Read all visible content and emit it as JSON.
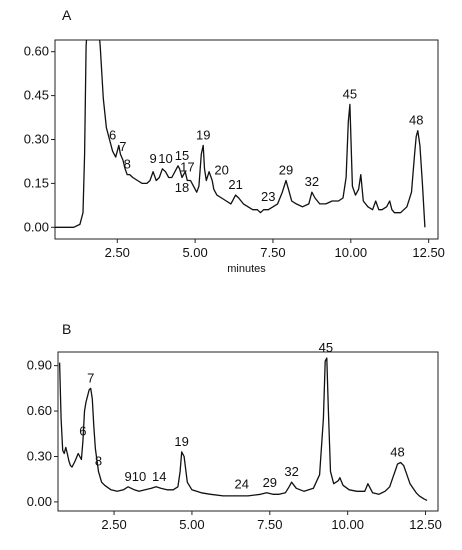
{
  "chart_data": [
    {
      "type": "line",
      "panel_label": "A",
      "xlabel": "minutes",
      "ylabel": "",
      "xlim": [
        0.5,
        12.8
      ],
      "ylim": [
        -0.04,
        0.64
      ],
      "xticks": [
        "2.50",
        "5.00",
        "7.50",
        "10.00",
        "12.50"
      ],
      "yticks": [
        "0.00",
        "0.15",
        "0.30",
        "0.45",
        "0.60"
      ],
      "grid": false,
      "series": [
        {
          "x": [
            0.5,
            1.1,
            1.3,
            1.4,
            1.45,
            1.5,
            1.55,
            1.6,
            1.7,
            1.8,
            1.88,
            1.95,
            2.05,
            2.15,
            2.25,
            2.35,
            2.45,
            2.55,
            2.6,
            2.68,
            2.75,
            2.82,
            2.9,
            3.0,
            3.15,
            3.3,
            3.45,
            3.55,
            3.65,
            3.75,
            3.85,
            3.95,
            4.05,
            4.15,
            4.25,
            4.35,
            4.45,
            4.5,
            4.58,
            4.68,
            4.75,
            4.85,
            4.95,
            5.05,
            5.12,
            5.2,
            5.26,
            5.3,
            5.36,
            5.45,
            5.55,
            5.6,
            5.7,
            5.85,
            6.0,
            6.15,
            6.3,
            6.4,
            6.55,
            6.7,
            6.85,
            7.0,
            7.1,
            7.2,
            7.35,
            7.5,
            7.65,
            7.8,
            7.92,
            8.0,
            8.1,
            8.25,
            8.45,
            8.65,
            8.75,
            8.85,
            9.0,
            9.2,
            9.4,
            9.6,
            9.75,
            9.85,
            9.92,
            9.97,
            10.05,
            10.15,
            10.25,
            10.32,
            10.4,
            10.55,
            10.7,
            10.8,
            10.9,
            11.0,
            11.15,
            11.25,
            11.32,
            11.4,
            11.6,
            11.8,
            11.95,
            12.05,
            12.1,
            12.15,
            12.22,
            12.3,
            12.38
          ],
          "y": [
            0.0,
            0.0,
            0.01,
            0.05,
            0.25,
            0.62,
            0.7,
            0.7,
            0.7,
            0.7,
            0.7,
            0.62,
            0.44,
            0.34,
            0.3,
            0.26,
            0.24,
            0.28,
            0.25,
            0.23,
            0.2,
            0.18,
            0.18,
            0.17,
            0.16,
            0.15,
            0.15,
            0.16,
            0.19,
            0.16,
            0.17,
            0.2,
            0.19,
            0.17,
            0.17,
            0.19,
            0.21,
            0.2,
            0.17,
            0.19,
            0.16,
            0.16,
            0.14,
            0.12,
            0.14,
            0.25,
            0.28,
            0.2,
            0.16,
            0.19,
            0.16,
            0.13,
            0.11,
            0.1,
            0.09,
            0.08,
            0.11,
            0.1,
            0.08,
            0.07,
            0.06,
            0.06,
            0.05,
            0.06,
            0.06,
            0.07,
            0.08,
            0.12,
            0.16,
            0.13,
            0.09,
            0.08,
            0.07,
            0.08,
            0.12,
            0.1,
            0.08,
            0.08,
            0.09,
            0.09,
            0.1,
            0.17,
            0.36,
            0.42,
            0.14,
            0.11,
            0.13,
            0.18,
            0.09,
            0.07,
            0.06,
            0.09,
            0.06,
            0.06,
            0.07,
            0.09,
            0.06,
            0.05,
            0.05,
            0.07,
            0.12,
            0.25,
            0.31,
            0.33,
            0.28,
            0.15,
            0.0
          ]
        }
      ],
      "peak_labels": [
        {
          "text": "6",
          "x": 2.35,
          "y": 0.28
        },
        {
          "text": "7",
          "x": 2.68,
          "y": 0.24
        },
        {
          "text": "8",
          "x": 2.82,
          "y": 0.18
        },
        {
          "text": "9",
          "x": 3.65,
          "y": 0.2
        },
        {
          "text": "10",
          "x": 4.05,
          "y": 0.2
        },
        {
          "text": "15",
          "x": 4.58,
          "y": 0.21
        },
        {
          "text": "17",
          "x": 4.75,
          "y": 0.17
        },
        {
          "text": "18",
          "x": 4.58,
          "y": 0.1
        },
        {
          "text": "19",
          "x": 5.26,
          "y": 0.28
        },
        {
          "text": "20",
          "x": 5.85,
          "y": 0.16
        },
        {
          "text": "21",
          "x": 6.3,
          "y": 0.11
        },
        {
          "text": "23",
          "x": 7.35,
          "y": 0.07
        },
        {
          "text": "29",
          "x": 7.92,
          "y": 0.16
        },
        {
          "text": "32",
          "x": 8.75,
          "y": 0.12
        },
        {
          "text": "45",
          "x": 9.97,
          "y": 0.42
        },
        {
          "text": "48",
          "x": 12.1,
          "y": 0.33
        }
      ]
    },
    {
      "type": "line",
      "panel_label": "B",
      "xlabel": "",
      "ylabel": "",
      "xlim": [
        0.7,
        12.9
      ],
      "ylim": [
        -0.06,
        0.99
      ],
      "xticks": [
        "2.50",
        "5.00",
        "7.50",
        "10.00",
        "12.50"
      ],
      "yticks": [
        "0.00",
        "0.30",
        "0.60",
        "0.90"
      ],
      "grid": false,
      "series": [
        {
          "x": [
            0.75,
            0.8,
            0.85,
            0.9,
            0.95,
            1.0,
            1.05,
            1.1,
            1.15,
            1.25,
            1.35,
            1.45,
            1.5,
            1.55,
            1.6,
            1.65,
            1.7,
            1.75,
            1.8,
            1.85,
            1.9,
            2.0,
            2.1,
            2.2,
            2.4,
            2.6,
            2.8,
            2.95,
            3.05,
            3.15,
            3.3,
            3.5,
            3.7,
            3.85,
            4.0,
            4.2,
            4.4,
            4.55,
            4.62,
            4.67,
            4.75,
            4.85,
            5.0,
            5.3,
            5.6,
            6.0,
            6.4,
            6.8,
            7.2,
            7.4,
            7.6,
            7.8,
            8.0,
            8.12,
            8.2,
            8.35,
            8.6,
            8.9,
            9.1,
            9.22,
            9.28,
            9.33,
            9.38,
            9.45,
            9.55,
            9.7,
            9.75,
            9.85,
            10.05,
            10.3,
            10.55,
            10.65,
            10.8,
            11.0,
            11.2,
            11.35,
            11.45,
            11.55,
            11.6,
            11.7,
            11.8,
            11.9,
            12.0,
            12.1,
            12.2,
            12.3,
            12.45,
            12.55
          ],
          "y": [
            0.92,
            0.55,
            0.34,
            0.32,
            0.36,
            0.32,
            0.27,
            0.24,
            0.23,
            0.27,
            0.32,
            0.28,
            0.4,
            0.6,
            0.66,
            0.7,
            0.74,
            0.75,
            0.68,
            0.5,
            0.35,
            0.2,
            0.13,
            0.11,
            0.08,
            0.07,
            0.08,
            0.1,
            0.09,
            0.08,
            0.07,
            0.08,
            0.09,
            0.1,
            0.09,
            0.08,
            0.08,
            0.1,
            0.2,
            0.33,
            0.3,
            0.13,
            0.08,
            0.06,
            0.05,
            0.04,
            0.04,
            0.04,
            0.05,
            0.06,
            0.05,
            0.05,
            0.06,
            0.1,
            0.13,
            0.09,
            0.07,
            0.09,
            0.18,
            0.55,
            0.93,
            0.95,
            0.6,
            0.2,
            0.12,
            0.14,
            0.16,
            0.11,
            0.08,
            0.07,
            0.07,
            0.12,
            0.06,
            0.05,
            0.07,
            0.1,
            0.16,
            0.22,
            0.25,
            0.26,
            0.24,
            0.18,
            0.12,
            0.09,
            0.06,
            0.04,
            0.02,
            0.01
          ]
        }
      ],
      "peak_labels": [
        {
          "text": "6",
          "x": 1.5,
          "y": 0.4
        },
        {
          "text": "7",
          "x": 1.75,
          "y": 0.75
        },
        {
          "text": "8",
          "x": 2.0,
          "y": 0.2
        },
        {
          "text": "9",
          "x": 2.95,
          "y": 0.1
        },
        {
          "text": "10",
          "x": 3.3,
          "y": 0.1
        },
        {
          "text": "14",
          "x": 3.95,
          "y": 0.1
        },
        {
          "text": "19",
          "x": 4.67,
          "y": 0.33
        },
        {
          "text": "24",
          "x": 6.6,
          "y": 0.05
        },
        {
          "text": "29",
          "x": 7.5,
          "y": 0.06
        },
        {
          "text": "32",
          "x": 8.2,
          "y": 0.13
        },
        {
          "text": "45",
          "x": 9.3,
          "y": 0.95
        },
        {
          "text": "48",
          "x": 11.6,
          "y": 0.26
        }
      ]
    }
  ]
}
